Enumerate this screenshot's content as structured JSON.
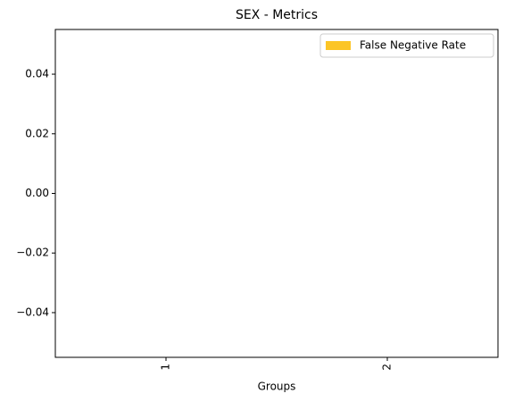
{
  "chart_data": {
    "type": "bar",
    "title": "SEX - Metrics",
    "x_label": "Groups",
    "categories": [
      "1",
      "2"
    ],
    "series": [
      {
        "name": "False Negative Rate",
        "color": "#fcc526",
        "values": [
          0,
          0
        ]
      }
    ],
    "ylim": [
      -0.055,
      0.055
    ],
    "yticks": [
      {
        "value": -0.04,
        "label": "−0.04"
      },
      {
        "value": -0.02,
        "label": "−0.02"
      },
      {
        "value": 0,
        "label": "0.00"
      },
      0.02,
      0.04
    ],
    "legend": "upper right",
    "grid": false
  }
}
